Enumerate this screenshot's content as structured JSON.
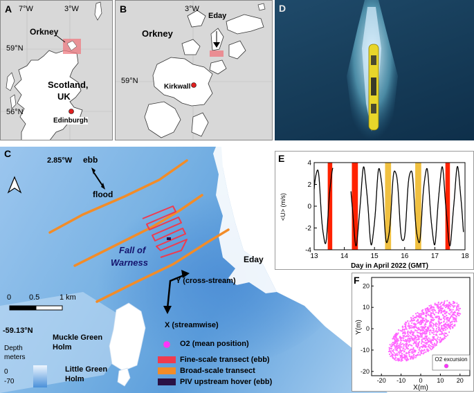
{
  "panels": {
    "a": {
      "label": "A",
      "lon_labels": [
        "7°W",
        "3°W"
      ],
      "lat_labels": [
        "59°N",
        "56°N"
      ],
      "place_labels": {
        "orkney": "Orkney",
        "scotland": "Scotland,",
        "uk": "UK",
        "edinburgh": "Edinburgh"
      }
    },
    "b": {
      "label": "B",
      "lon_label": "3°W",
      "lat_label": "59°N",
      "place_labels": {
        "orkney": "Orkney",
        "eday": "Eday",
        "kirkwall": "Kirkwall"
      }
    },
    "c": {
      "label": "C",
      "lon_label": "2.85°W",
      "lat_label": "-59.13°N",
      "tide": {
        "ebb": "ebb",
        "flood": "flood"
      },
      "site_name": [
        "Fall of",
        "Warness"
      ],
      "island_labels": {
        "eday": "Eday",
        "muckle": [
          "Muckle Green",
          "Holm"
        ],
        "little": [
          "Little Green",
          "Holm"
        ]
      },
      "axes": {
        "y": "Y (cross-stream)",
        "x": "X (streamwise)"
      },
      "scalebar": {
        "ticks": [
          "0",
          "0.5",
          "1 km"
        ]
      },
      "depth_legend": {
        "title": [
          "Depth",
          "meters"
        ],
        "max": "0",
        "min": "-70"
      },
      "legend": [
        {
          "label": "O2 (mean position)",
          "color": "#ff33ff"
        },
        {
          "label": "Fine-scale transect (ebb)",
          "color": "#ef3b4f"
        },
        {
          "label": "Broad-scale transect",
          "color": "#f28c28"
        },
        {
          "label": "PIV upstream hover (ebb)",
          "color": "#2a1245"
        }
      ]
    },
    "d": {
      "label": "D"
    },
    "e": {
      "label": "E",
      "ylabel": "<U> (m/s)",
      "xlabel": "Day in April 2022 (GMT)",
      "xticks": [
        "13",
        "14",
        "15",
        "16",
        "17",
        "18"
      ],
      "yticks": [
        "4",
        "2",
        "0",
        "-2",
        "-4"
      ]
    },
    "f": {
      "label": "F",
      "ylabel": "Y(m)",
      "xlabel": "X(m)",
      "xticks": [
        "-20",
        "-10",
        "0",
        "10",
        "20"
      ],
      "yticks": [
        "20",
        "10",
        "0",
        "-10",
        "-20"
      ],
      "legend": "O2 excursion"
    }
  },
  "chart_data": [
    {
      "type": "line",
      "xlabel": "Day in April 2022 (GMT)",
      "ylabel": "<U> (m/s)",
      "xlim": [
        13,
        18
      ],
      "ylim": [
        -4,
        4
      ],
      "highlight_spans": [
        {
          "x0": 13.45,
          "x1": 13.6,
          "color": "#ff2200"
        },
        {
          "x0": 14.25,
          "x1": 14.45,
          "color": "#ff2200"
        },
        {
          "x0": 15.35,
          "x1": 15.55,
          "color": "#f0c040"
        },
        {
          "x0": 16.35,
          "x1": 16.55,
          "color": "#f0c040"
        },
        {
          "x0": 17.35,
          "x1": 17.5,
          "color": "#ff2200"
        }
      ],
      "segments": [
        {
          "x0": 13.0,
          "x1": 13.62
        },
        {
          "x0": 14.22,
          "x1": 17.95
        }
      ]
    },
    {
      "type": "scatter",
      "xlabel": "X(m)",
      "ylabel": "Y(m)",
      "xlim": [
        -25,
        25
      ],
      "ylim": [
        -22,
        24
      ],
      "series": [
        {
          "name": "O2 excursion",
          "color": "#ff66ff"
        }
      ]
    }
  ]
}
